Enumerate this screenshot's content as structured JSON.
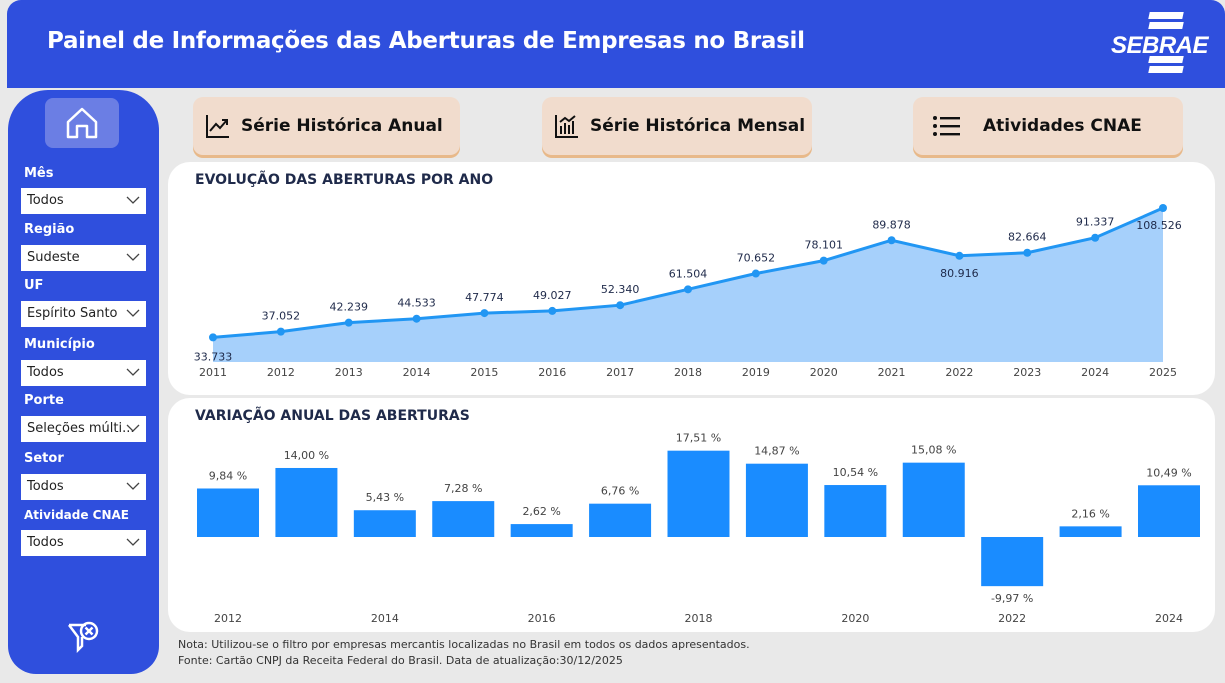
{
  "header": {
    "title": "Painel de Informações das Aberturas de Empresas no Brasil",
    "logo": "SEBRAE"
  },
  "nav": [
    {
      "label": "Série Histórica Anual",
      "icon": "line-chart-icon"
    },
    {
      "label": "Série Histórica Mensal",
      "icon": "bar-chart-icon"
    },
    {
      "label": "Atividades CNAE",
      "icon": "list-icon"
    }
  ],
  "filters": [
    {
      "label": "Mês",
      "value": "Todos"
    },
    {
      "label": "Região",
      "value": "Sudeste"
    },
    {
      "label": "UF",
      "value": "Espírito Santo"
    },
    {
      "label": "Município",
      "value": "Todos"
    },
    {
      "label": "Porte",
      "value": "Seleções múlti..."
    },
    {
      "label": "Setor",
      "value": "Todos"
    },
    {
      "label": "Atividade CNAE",
      "value": "Todos"
    }
  ],
  "chart_data": [
    {
      "type": "area",
      "title": "EVOLUÇÃO DAS ABERTURAS POR ANO",
      "x": [
        "2011",
        "2012",
        "2013",
        "2014",
        "2015",
        "2016",
        "2017",
        "2018",
        "2019",
        "2020",
        "2021",
        "2022",
        "2023",
        "2024",
        "2025"
      ],
      "values": [
        33733,
        37052,
        42239,
        44533,
        47774,
        49027,
        52340,
        61504,
        70652,
        78101,
        89878,
        80916,
        82664,
        91337,
        108526
      ],
      "labels": [
        "33.733",
        "37.052",
        "42.239",
        "44.533",
        "47.774",
        "49.027",
        "52.340",
        "61.504",
        "70.652",
        "78.101",
        "89.878",
        "80.916",
        "82.664",
        "91.337",
        "108.526"
      ],
      "ylim": [
        19500,
        112000
      ],
      "color": "#2196f3",
      "fill": "#a6d0fb"
    },
    {
      "type": "bar",
      "title": "VARIAÇÃO ANUAL DAS ABERTURAS",
      "x": [
        "2012",
        "2013",
        "2014",
        "2015",
        "2016",
        "2017",
        "2018",
        "2019",
        "2020",
        "2021",
        "2022",
        "2023",
        "2024"
      ],
      "tick_labels": [
        "2012",
        "",
        "2014",
        "",
        "2016",
        "",
        "2018",
        "",
        "2020",
        "",
        "2022",
        "",
        "2024"
      ],
      "values": [
        9.84,
        14.0,
        5.43,
        7.28,
        2.62,
        6.76,
        17.51,
        14.87,
        10.54,
        15.08,
        -9.97,
        2.16,
        10.49
      ],
      "labels": [
        "9,84 %",
        "14,00 %",
        "5,43 %",
        "7,28 %",
        "2,62 %",
        "6,76 %",
        "17,51 %",
        "14,87 %",
        "10,54 %",
        "15,08 %",
        "-9,97 %",
        "2,16 %",
        "10,49 %"
      ],
      "color": "#1a8cff"
    }
  ],
  "notes": {
    "line1": "Nota: Utilizou-se o filtro por empresas mercantis localizadas no Brasil em todos os dados apresentados.",
    "line2": "Fonte: Cartão CNPJ da Receita Federal do Brasil. Data de atualização:30/12/2025"
  }
}
